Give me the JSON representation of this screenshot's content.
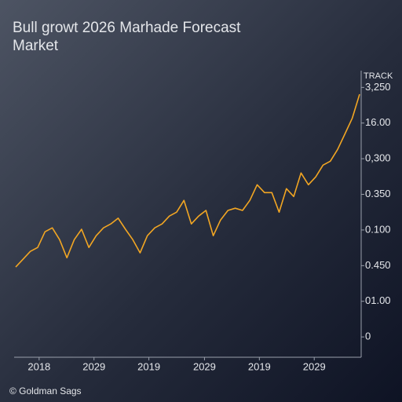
{
  "chart_data": {
    "type": "line",
    "title": [
      "Bull growt 2026 Marhade Forecast",
      "Market"
    ],
    "y_axis_label": "TRACK",
    "footer": "© Goldman Sags",
    "series": [
      {
        "color": "#f2a623",
        "values": [
          1.96,
          2.18,
          2.4,
          2.51,
          2.95,
          3.06,
          2.73,
          2.22,
          2.73,
          3.02,
          2.51,
          2.84,
          3.06,
          3.17,
          3.33,
          3.02,
          2.73,
          2.36,
          2.84,
          3.06,
          3.17,
          3.39,
          3.5,
          3.83,
          3.17,
          3.39,
          3.55,
          2.84,
          3.28,
          3.55,
          3.61,
          3.55,
          3.83,
          4.27,
          4.05,
          4.05,
          3.5,
          4.16,
          3.94,
          4.6,
          4.27,
          4.49,
          4.82,
          4.93,
          5.26,
          5.7,
          6.14,
          6.81
        ]
      }
    ],
    "xlim": [
      0,
      47
    ],
    "xticks": [
      {
        "value": 3.2,
        "label": "2018"
      },
      {
        "value": 10.7,
        "label": "2029"
      },
      {
        "value": 18.2,
        "label": "2019"
      },
      {
        "value": 25.8,
        "label": "2029"
      },
      {
        "value": 33.3,
        "label": "2019"
      },
      {
        "value": 40.8,
        "label": "2029"
      }
    ],
    "ylim": [
      -0.57,
      7.47
    ],
    "yticks": [
      0,
      {
        "value": 1,
        "label": "01.00"
      },
      {
        "value": 2,
        "label": "0.450"
      },
      {
        "value": 3,
        "label": "0.100"
      },
      {
        "value": 4,
        "label": "0.350"
      },
      {
        "value": 5,
        "label": "0,300"
      },
      {
        "value": 6,
        "label": "16.00"
      },
      {
        "value": 7,
        "label": "3,250"
      }
    ]
  }
}
